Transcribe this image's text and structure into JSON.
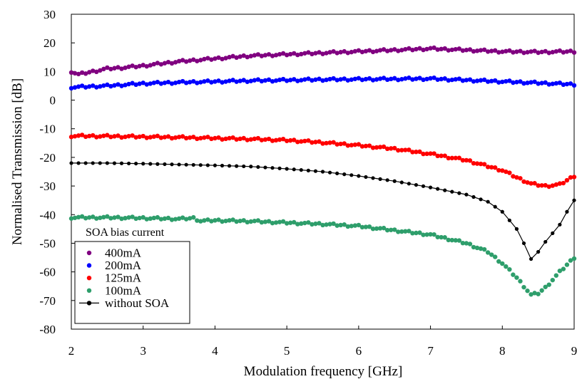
{
  "chart_data": {
    "type": "scatter",
    "title": "",
    "xlabel": "Modulation frequency [GHz]",
    "ylabel": "Normalised Transmission [dB]",
    "xlim": [
      2,
      9
    ],
    "ylim": [
      -80,
      30
    ],
    "xticks": [
      2,
      3,
      4,
      5,
      6,
      7,
      8,
      9
    ],
    "yticks": [
      -80,
      -70,
      -60,
      -50,
      -40,
      -30,
      -20,
      -10,
      0,
      10,
      20,
      30
    ],
    "grid": false,
    "legend_position": "bottom-left",
    "legend_title": "SOA bias current",
    "series": [
      {
        "name": "400mA",
        "color": "#800080",
        "style": "markers",
        "points": [
          [
            2.0,
            10
          ],
          [
            2.1,
            9
          ],
          [
            2.2,
            9.5
          ],
          [
            2.3,
            10
          ],
          [
            2.4,
            10.5
          ],
          [
            2.5,
            11
          ],
          [
            2.7,
            11.3
          ],
          [
            3.0,
            12
          ],
          [
            3.5,
            13.5
          ],
          [
            4.0,
            14.5
          ],
          [
            4.5,
            15.5
          ],
          [
            5.0,
            16
          ],
          [
            5.5,
            16.5
          ],
          [
            6.0,
            17
          ],
          [
            6.5,
            17.5
          ],
          [
            7.0,
            18
          ],
          [
            7.5,
            17.5
          ],
          [
            8.0,
            17
          ],
          [
            8.5,
            16.8
          ],
          [
            9.0,
            17
          ]
        ]
      },
      {
        "name": "200mA",
        "color": "#0000ff",
        "style": "markers",
        "points": [
          [
            2.0,
            4.5
          ],
          [
            2.5,
            5
          ],
          [
            3.0,
            5.8
          ],
          [
            3.5,
            6.2
          ],
          [
            4.0,
            6.5
          ],
          [
            4.5,
            6.8
          ],
          [
            5.0,
            7
          ],
          [
            5.5,
            7.2
          ],
          [
            6.0,
            7.3
          ],
          [
            6.5,
            7.4
          ],
          [
            7.0,
            7.5
          ],
          [
            7.5,
            7
          ],
          [
            8.0,
            6.5
          ],
          [
            8.5,
            6
          ],
          [
            9.0,
            5.5
          ]
        ]
      },
      {
        "name": "125mA",
        "color": "#ff0000",
        "style": "markers",
        "points": [
          [
            2.0,
            -12.5
          ],
          [
            2.5,
            -12.6
          ],
          [
            3.0,
            -12.8
          ],
          [
            3.5,
            -13
          ],
          [
            4.0,
            -13.3
          ],
          [
            4.5,
            -13.6
          ],
          [
            5.0,
            -14
          ],
          [
            5.5,
            -14.8
          ],
          [
            6.0,
            -15.8
          ],
          [
            6.5,
            -17
          ],
          [
            7.0,
            -18.8
          ],
          [
            7.5,
            -21
          ],
          [
            8.0,
            -24.5
          ],
          [
            8.2,
            -27
          ],
          [
            8.4,
            -29.2
          ],
          [
            8.6,
            -30
          ],
          [
            8.8,
            -29.5
          ],
          [
            9.0,
            -26.5
          ]
        ]
      },
      {
        "name": "100mA",
        "color": "#2e9e6b",
        "style": "markers",
        "points": [
          [
            2.0,
            -41
          ],
          [
            2.5,
            -41
          ],
          [
            3.0,
            -41.2
          ],
          [
            3.5,
            -41.5
          ],
          [
            3.7,
            -41.2
          ],
          [
            3.8,
            -42.2
          ],
          [
            4.0,
            -42
          ],
          [
            4.5,
            -42.3
          ],
          [
            5.0,
            -42.8
          ],
          [
            5.5,
            -43.3
          ],
          [
            6.0,
            -44
          ],
          [
            6.5,
            -45.5
          ],
          [
            7.0,
            -47
          ],
          [
            7.5,
            -50
          ],
          [
            7.8,
            -53
          ],
          [
            8.0,
            -57
          ],
          [
            8.2,
            -62
          ],
          [
            8.3,
            -65
          ],
          [
            8.4,
            -68
          ],
          [
            8.5,
            -67.5
          ],
          [
            8.6,
            -65.5
          ],
          [
            8.8,
            -60
          ],
          [
            9.0,
            -55
          ]
        ]
      },
      {
        "name": "without SOA",
        "color": "#000000",
        "style": "line-markers",
        "points": [
          [
            2.0,
            -22
          ],
          [
            2.5,
            -22
          ],
          [
            3.0,
            -22.2
          ],
          [
            3.5,
            -22.5
          ],
          [
            4.0,
            -22.8
          ],
          [
            4.5,
            -23.2
          ],
          [
            5.0,
            -24
          ],
          [
            5.5,
            -25
          ],
          [
            6.0,
            -26.5
          ],
          [
            6.5,
            -28.3
          ],
          [
            7.0,
            -30.5
          ],
          [
            7.5,
            -33
          ],
          [
            7.8,
            -35.5
          ],
          [
            8.0,
            -39
          ],
          [
            8.1,
            -42
          ],
          [
            8.2,
            -45
          ],
          [
            8.3,
            -50
          ],
          [
            8.4,
            -55.5
          ],
          [
            8.5,
            -53
          ],
          [
            8.6,
            -49.5
          ],
          [
            8.7,
            -46.5
          ],
          [
            8.8,
            -43.5
          ],
          [
            8.9,
            -39
          ],
          [
            9.0,
            -35
          ]
        ]
      }
    ]
  }
}
